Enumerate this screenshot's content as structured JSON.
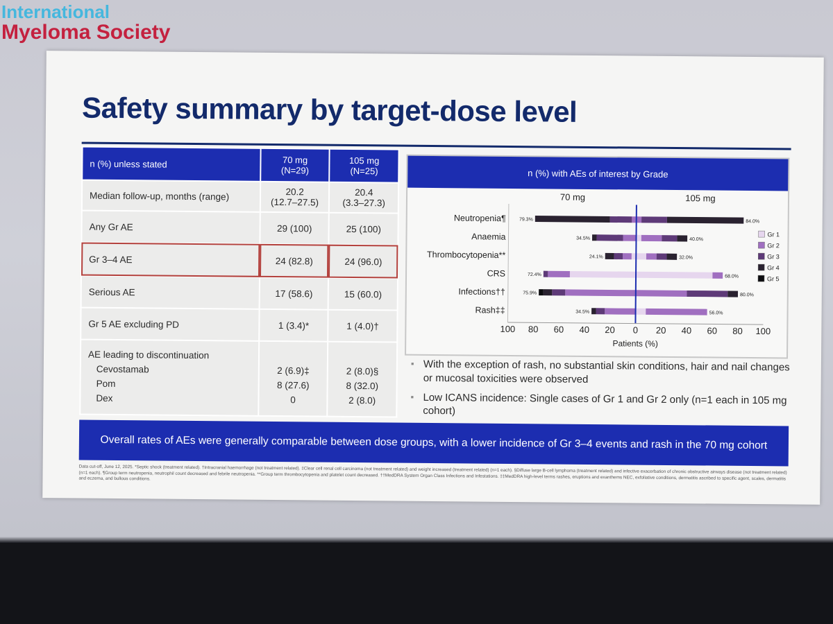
{
  "society": {
    "line1": "International",
    "line2": "Myeloma Society"
  },
  "title": "Safety summary by target-dose level",
  "table": {
    "header": {
      "label": "n (%) unless stated",
      "col1": "70 mg\n(N=29)",
      "col2": "105 mg\n(N=25)"
    },
    "rows": [
      {
        "label": "Median follow-up, months (range)",
        "c1": "20.2\n(12.7–27.5)",
        "c2": "20.4\n(3.3–27.3)"
      },
      {
        "label": "Any Gr AE",
        "c1": "29 (100)",
        "c2": "25 (100)"
      },
      {
        "label": "Gr 3–4 AE",
        "c1": "24 (82.8)",
        "c2": "24 (96.0)"
      },
      {
        "label": "Serious AE",
        "c1": "17 (58.6)",
        "c2": "15 (60.0)"
      },
      {
        "label": "Gr 5 AE excluding PD",
        "c1": "1 (3.4)*",
        "c2": "1 (4.0)†"
      }
    ],
    "disc": {
      "label": "AE leading to discontinuation",
      "subs": [
        "Cevostamab",
        "Pom",
        "Dex"
      ],
      "c1": [
        "2 (6.9)‡",
        "8 (27.6)",
        "0"
      ],
      "c2": [
        "2 (8.0)§",
        "8 (32.0)",
        "2 (8.0)"
      ]
    }
  },
  "chart_header": "n (%) with AEs of interest by Grade",
  "chart_data": {
    "type": "bar",
    "orientation": "horizontal-butterfly",
    "stacked": true,
    "group_labels": [
      "70 mg",
      "105 mg"
    ],
    "categories": [
      "Neutropenia¶",
      "Anaemia",
      "Thrombocytopenia**",
      "CRS",
      "Infections††",
      "Rash‡‡"
    ],
    "series": [
      {
        "name": "Gr 1",
        "color": "#e6d6ee",
        "left": [
          0,
          0,
          3.5,
          51.7,
          0,
          0
        ],
        "right": [
          0,
          4,
          8,
          60,
          0,
          8
        ]
      },
      {
        "name": "Gr 2",
        "color": "#a06fc0",
        "left": [
          3.5,
          10.3,
          6.9,
          17.2,
          55.2,
          24.1
        ],
        "right": [
          4,
          16,
          8,
          8,
          40,
          48
        ]
      },
      {
        "name": "Gr 3",
        "color": "#5e3a78",
        "left": [
          17.2,
          20.7,
          6.9,
          3.5,
          10.3,
          6.9
        ],
        "right": [
          20,
          12,
          8,
          0,
          32,
          0
        ]
      },
      {
        "name": "Gr 4",
        "color": "#2a2230",
        "left": [
          58.6,
          3.5,
          6.9,
          0,
          6.9,
          3.5
        ],
        "right": [
          60,
          8,
          8,
          0,
          8,
          0
        ]
      },
      {
        "name": "Gr 5",
        "color": "#0d0d10",
        "left": [
          0,
          0,
          0,
          0,
          3.5,
          0
        ],
        "right": [
          0,
          0,
          0,
          0,
          0,
          0
        ]
      }
    ],
    "left_totals": [
      "79.3%",
      "34.5%",
      "24.1%",
      "72.4%",
      "75.9%",
      "34.5%"
    ],
    "right_totals": [
      "84.0%",
      "40.0%",
      "32.0%",
      "68.0%",
      "80.0%",
      "56.0%"
    ],
    "xticks": [
      "100",
      "80",
      "60",
      "40",
      "20",
      "0",
      "20",
      "40",
      "60",
      "80",
      "100"
    ],
    "xlabel": "Patients (%)",
    "xlim": [
      -100,
      100
    ],
    "legend_position": "right"
  },
  "bullets": [
    "With the exception of rash, no substantial skin conditions, hair and nail changes or mucosal toxicities were observed",
    "Low ICANS incidence: Single cases of Gr 1 and Gr 2 only (n=1 each in 105 mg cohort)"
  ],
  "banner": "Overall rates of AEs were generally comparable between dose groups, with a lower incidence of Gr 3–4 events and rash in the 70 mg cohort",
  "footnote": "Data cut-off, June 12, 2025. *Septic shock (treatment related). †Intracranial haemorrhage (not treatment related). ‡Clear cell renal cell carcinoma (not treatment related) and weight increased (treatment related) (n=1 each). §Diffuse large B-cell lymphoma (treatment related) and infective exacerbation of chronic obstructive airways disease (not treatment related) (n=1 each). ¶Group term neutropenia, neutrophil count decreased and febrile neutropenia. **Group term thrombocytopenia and platelet count decreased. ††MedDRA System Organ Class Infections and Infestations. ‡‡MedDRA high-level terms rashes, eruptions and exanthems NEC, exfoliative conditions, dermatitis ascribed to specific agent, scales, dermatitis and eczema, and bullous conditions."
}
